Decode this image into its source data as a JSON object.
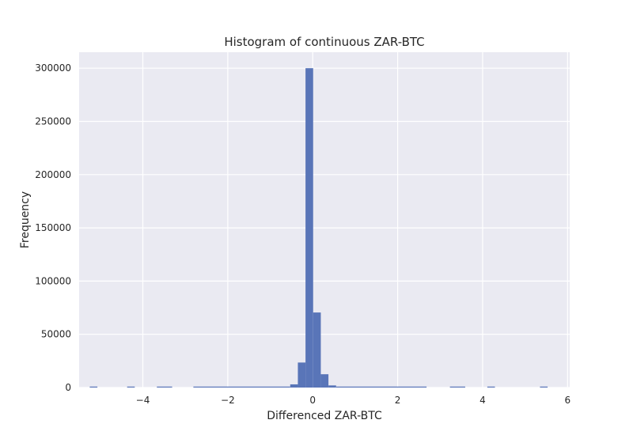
{
  "chart_data": {
    "type": "bar",
    "title": "Histogram of continuous ZAR-BTC",
    "xlabel": "Differenced ZAR-BTC",
    "ylabel": "Frequency",
    "xlim": [
      -5.5,
      6.05
    ],
    "ylim": [
      0,
      315000
    ],
    "grid": true,
    "x_ticks": [
      -4,
      -2,
      0,
      2,
      4,
      6
    ],
    "x_tick_labels": [
      "−4",
      "−2",
      "0",
      "2",
      "4",
      "6"
    ],
    "y_ticks": [
      0,
      50000,
      100000,
      150000,
      200000,
      250000,
      300000
    ],
    "y_tick_labels": [
      "0",
      "50000",
      "100000",
      "150000",
      "200000",
      "250000",
      "300000"
    ],
    "bin_width": 0.18,
    "bins": [
      {
        "x0": -5.25,
        "x1": -5.07,
        "value": 120
      },
      {
        "x0": -4.37,
        "x1": -4.19,
        "value": 120
      },
      {
        "x0": -3.67,
        "x1": -3.31,
        "value": 120
      },
      {
        "x0": -2.81,
        "x1": -0.53,
        "value": 150
      },
      {
        "x0": -0.53,
        "x1": -0.35,
        "value": 3000
      },
      {
        "x0": -0.35,
        "x1": -0.17,
        "value": 23500
      },
      {
        "x0": -0.17,
        "x1": 0.01,
        "value": 300000
      },
      {
        "x0": 0.01,
        "x1": 0.19,
        "value": 70500
      },
      {
        "x0": 0.19,
        "x1": 0.37,
        "value": 12500
      },
      {
        "x0": 0.37,
        "x1": 0.55,
        "value": 2000
      },
      {
        "x0": 0.55,
        "x1": 2.68,
        "value": 150
      },
      {
        "x0": 3.23,
        "x1": 3.59,
        "value": 120
      },
      {
        "x0": 4.11,
        "x1": 4.29,
        "value": 120
      },
      {
        "x0": 5.35,
        "x1": 5.53,
        "value": 120
      }
    ],
    "bar_color": "#5975b8",
    "plot_background": "#eaeaf2",
    "grid_color": "#ffffff"
  }
}
